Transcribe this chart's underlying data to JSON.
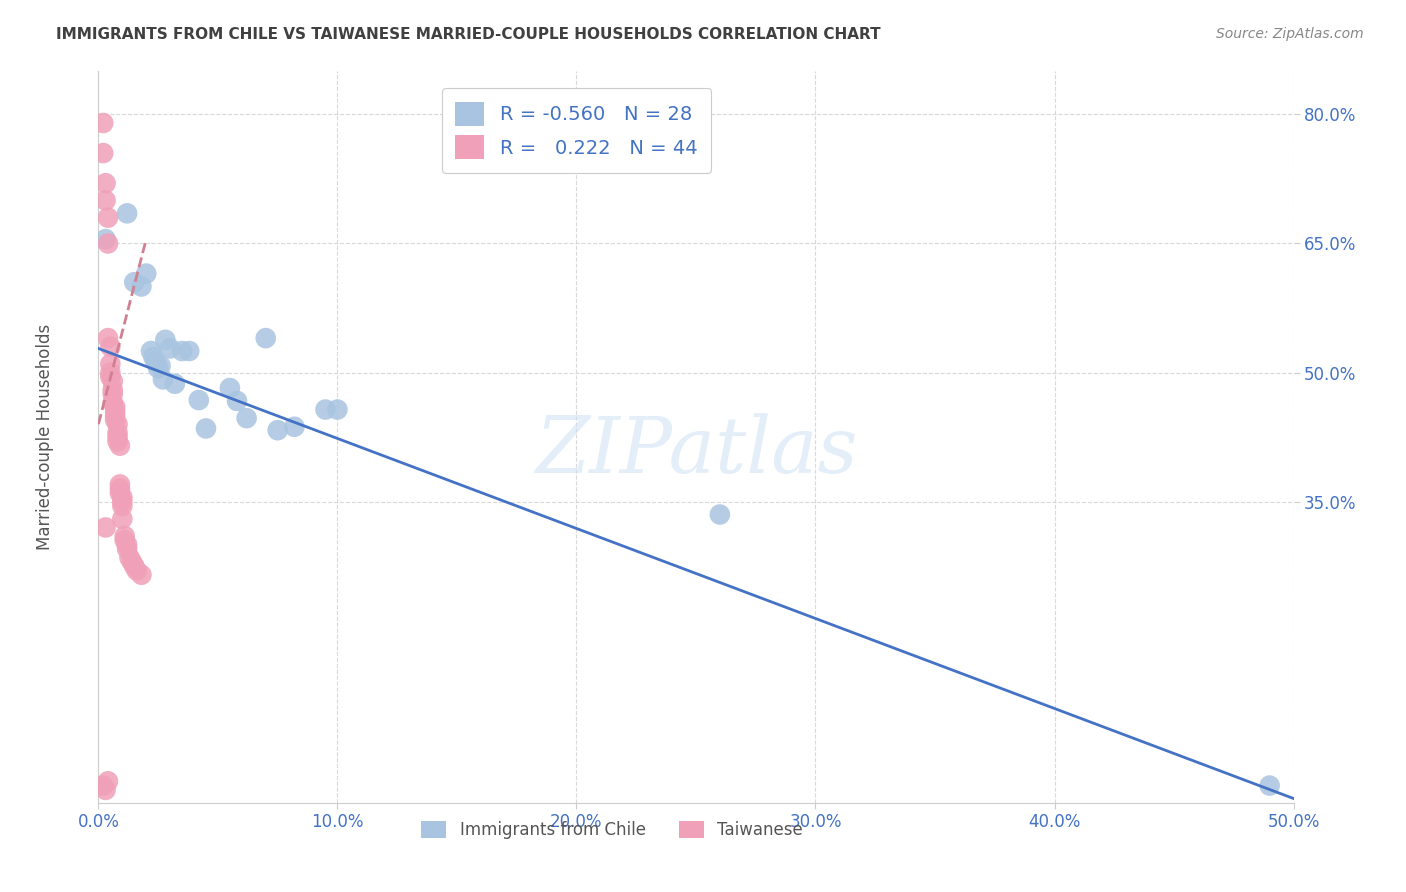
{
  "title": "IMMIGRANTS FROM CHILE VS TAIWANESE MARRIED-COUPLE HOUSEHOLDS CORRELATION CHART",
  "source": "Source: ZipAtlas.com",
  "ylabel": "Married-couple Households",
  "xmin": 0.0,
  "xmax": 0.5,
  "ymin": 0.0,
  "ymax": 0.85,
  "yticks": [
    0.35,
    0.5,
    0.65,
    0.8
  ],
  "ytick_labels": [
    "35.0%",
    "50.0%",
    "65.0%",
    "80.0%"
  ],
  "xticks": [
    0.0,
    0.1,
    0.2,
    0.3,
    0.4,
    0.5
  ],
  "xtick_labels": [
    "0.0%",
    "10.0%",
    "20.0%",
    "30.0%",
    "40.0%",
    "50.0%"
  ],
  "legend_labels": [
    "Immigrants from Chile",
    "Taiwanese"
  ],
  "blue_color": "#a8c4e0",
  "pink_color": "#f0a0b8",
  "blue_line_color": "#4472c4",
  "pink_line_color": "#d08090",
  "watermark_text": "ZIPatlas",
  "R_blue": -0.56,
  "N_blue": 28,
  "R_pink": 0.222,
  "N_pink": 44,
  "blue_points": [
    [
      0.003,
      0.655
    ],
    [
      0.012,
      0.685
    ],
    [
      0.015,
      0.605
    ],
    [
      0.018,
      0.6
    ],
    [
      0.02,
      0.615
    ],
    [
      0.022,
      0.525
    ],
    [
      0.023,
      0.518
    ],
    [
      0.024,
      0.512
    ],
    [
      0.025,
      0.505
    ],
    [
      0.026,
      0.508
    ],
    [
      0.027,
      0.492
    ],
    [
      0.028,
      0.538
    ],
    [
      0.03,
      0.528
    ],
    [
      0.032,
      0.487
    ],
    [
      0.035,
      0.525
    ],
    [
      0.038,
      0.525
    ],
    [
      0.042,
      0.468
    ],
    [
      0.045,
      0.435
    ],
    [
      0.055,
      0.482
    ],
    [
      0.058,
      0.467
    ],
    [
      0.062,
      0.447
    ],
    [
      0.07,
      0.54
    ],
    [
      0.075,
      0.433
    ],
    [
      0.082,
      0.437
    ],
    [
      0.095,
      0.457
    ],
    [
      0.1,
      0.457
    ],
    [
      0.26,
      0.335
    ],
    [
      0.49,
      0.02
    ]
  ],
  "pink_points": [
    [
      0.002,
      0.79
    ],
    [
      0.002,
      0.755
    ],
    [
      0.003,
      0.72
    ],
    [
      0.003,
      0.7
    ],
    [
      0.004,
      0.68
    ],
    [
      0.004,
      0.65
    ],
    [
      0.004,
      0.54
    ],
    [
      0.005,
      0.53
    ],
    [
      0.005,
      0.51
    ],
    [
      0.005,
      0.5
    ],
    [
      0.005,
      0.495
    ],
    [
      0.006,
      0.49
    ],
    [
      0.006,
      0.48
    ],
    [
      0.006,
      0.475
    ],
    [
      0.006,
      0.465
    ],
    [
      0.007,
      0.46
    ],
    [
      0.007,
      0.455
    ],
    [
      0.007,
      0.45
    ],
    [
      0.007,
      0.445
    ],
    [
      0.008,
      0.44
    ],
    [
      0.008,
      0.43
    ],
    [
      0.008,
      0.425
    ],
    [
      0.008,
      0.42
    ],
    [
      0.009,
      0.415
    ],
    [
      0.009,
      0.37
    ],
    [
      0.009,
      0.365
    ],
    [
      0.009,
      0.36
    ],
    [
      0.01,
      0.355
    ],
    [
      0.01,
      0.35
    ],
    [
      0.01,
      0.345
    ],
    [
      0.01,
      0.33
    ],
    [
      0.011,
      0.31
    ],
    [
      0.011,
      0.305
    ],
    [
      0.012,
      0.3
    ],
    [
      0.012,
      0.295
    ],
    [
      0.013,
      0.285
    ],
    [
      0.014,
      0.28
    ],
    [
      0.015,
      0.275
    ],
    [
      0.016,
      0.27
    ],
    [
      0.018,
      0.265
    ],
    [
      0.003,
      0.32
    ],
    [
      0.002,
      0.02
    ],
    [
      0.003,
      0.015
    ],
    [
      0.004,
      0.025
    ]
  ],
  "blue_line": {
    "x0": 0.0,
    "y0": 0.528,
    "x1": 0.5,
    "y1": 0.005
  },
  "pink_line": {
    "x0": 0.0,
    "y0": 0.44,
    "x1": 0.02,
    "y1": 0.655
  },
  "tick_color": "#4472c4",
  "title_color": "#404040",
  "label_text_color": "#4472c4",
  "grid_color": "#d0d0d0"
}
